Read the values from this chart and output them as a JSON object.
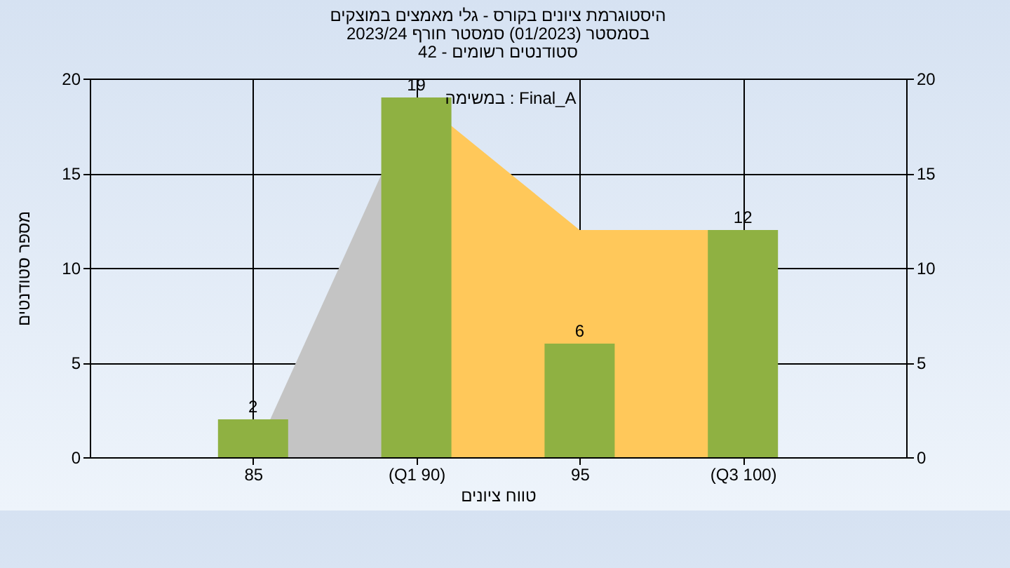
{
  "chart_data": {
    "type": "bar",
    "title": [
      "היסטוגרמת ציונים בקורס - גלי מאמצים במוצקים",
      "בסמסטר  (01/2023)  סמסטר חורף 2023/24",
      "סטודנטים רשומים - 42"
    ],
    "xlabel": "טווח ציונים",
    "ylabel": "מספר סטודנטים",
    "annotations": [
      "במשימה : Final_A"
    ],
    "categories": [
      "85",
      "(Q1 90)",
      "95",
      "(Q3 100)"
    ],
    "series": [
      {
        "type": "area",
        "color": "#c4c4c4",
        "values": [
          0,
          19,
          null,
          null
        ]
      },
      {
        "type": "area",
        "color": "#ffc85a",
        "values": [
          null,
          19,
          12,
          12
        ]
      },
      {
        "color": "#8fb142",
        "values": [
          2,
          19,
          6,
          12
        ],
        "value_labels": [
          "2",
          "19",
          "6",
          "12"
        ]
      }
    ],
    "ylim": [
      0,
      20
    ],
    "yticks": [
      0,
      5,
      10,
      15,
      20
    ],
    "y2lim": [
      0,
      20
    ],
    "y2ticks": [
      0,
      5,
      10,
      15,
      20
    ],
    "grid": true
  }
}
